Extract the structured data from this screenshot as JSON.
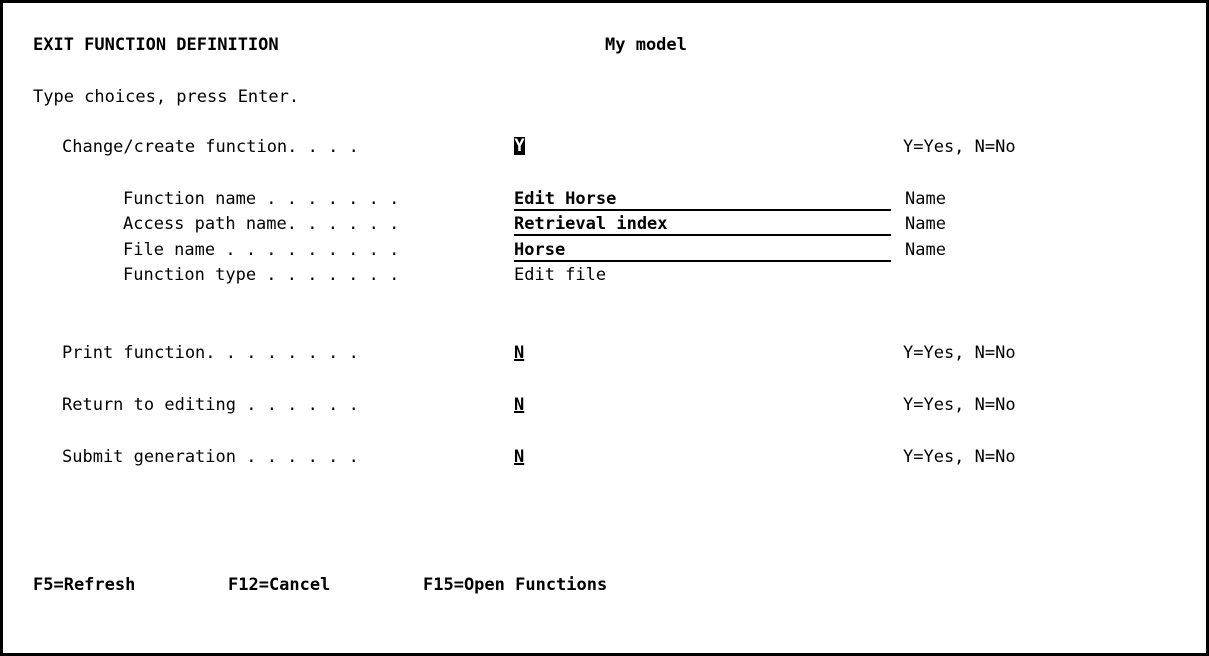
{
  "header": {
    "title": "EXIT FUNCTION DEFINITION",
    "model": "My model"
  },
  "instructions": "Type choices, press Enter.",
  "fields": {
    "change_create": {
      "label": "Change/create function. . . .",
      "value": "Y",
      "hint": "Y=Yes, N=No"
    },
    "function_name": {
      "label": "Function name . . . . . . .",
      "value": "Edit Horse",
      "hint": "Name"
    },
    "access_path_name": {
      "label": "Access path name. . . . . .",
      "value": "Retrieval index",
      "hint": "Name"
    },
    "file_name": {
      "label": "File name . . . . . . . . .",
      "value": "Horse",
      "hint": "Name"
    },
    "function_type": {
      "label": "Function type . . . . . . .",
      "value": "Edit file"
    },
    "print_function": {
      "label": "Print function. . . . . . . .",
      "value": "N",
      "hint": "Y=Yes, N=No"
    },
    "return_to_editing": {
      "label": "Return to editing . . . . . .",
      "value": "N",
      "hint": "Y=Yes, N=No"
    },
    "submit_generation": {
      "label": "Submit generation . . . . . .",
      "value": "N",
      "hint": "Y=Yes, N=No"
    }
  },
  "function_keys": [
    {
      "label": "F5=Refresh"
    },
    {
      "label": "F12=Cancel"
    },
    {
      "label": "F15=Open Functions"
    }
  ]
}
